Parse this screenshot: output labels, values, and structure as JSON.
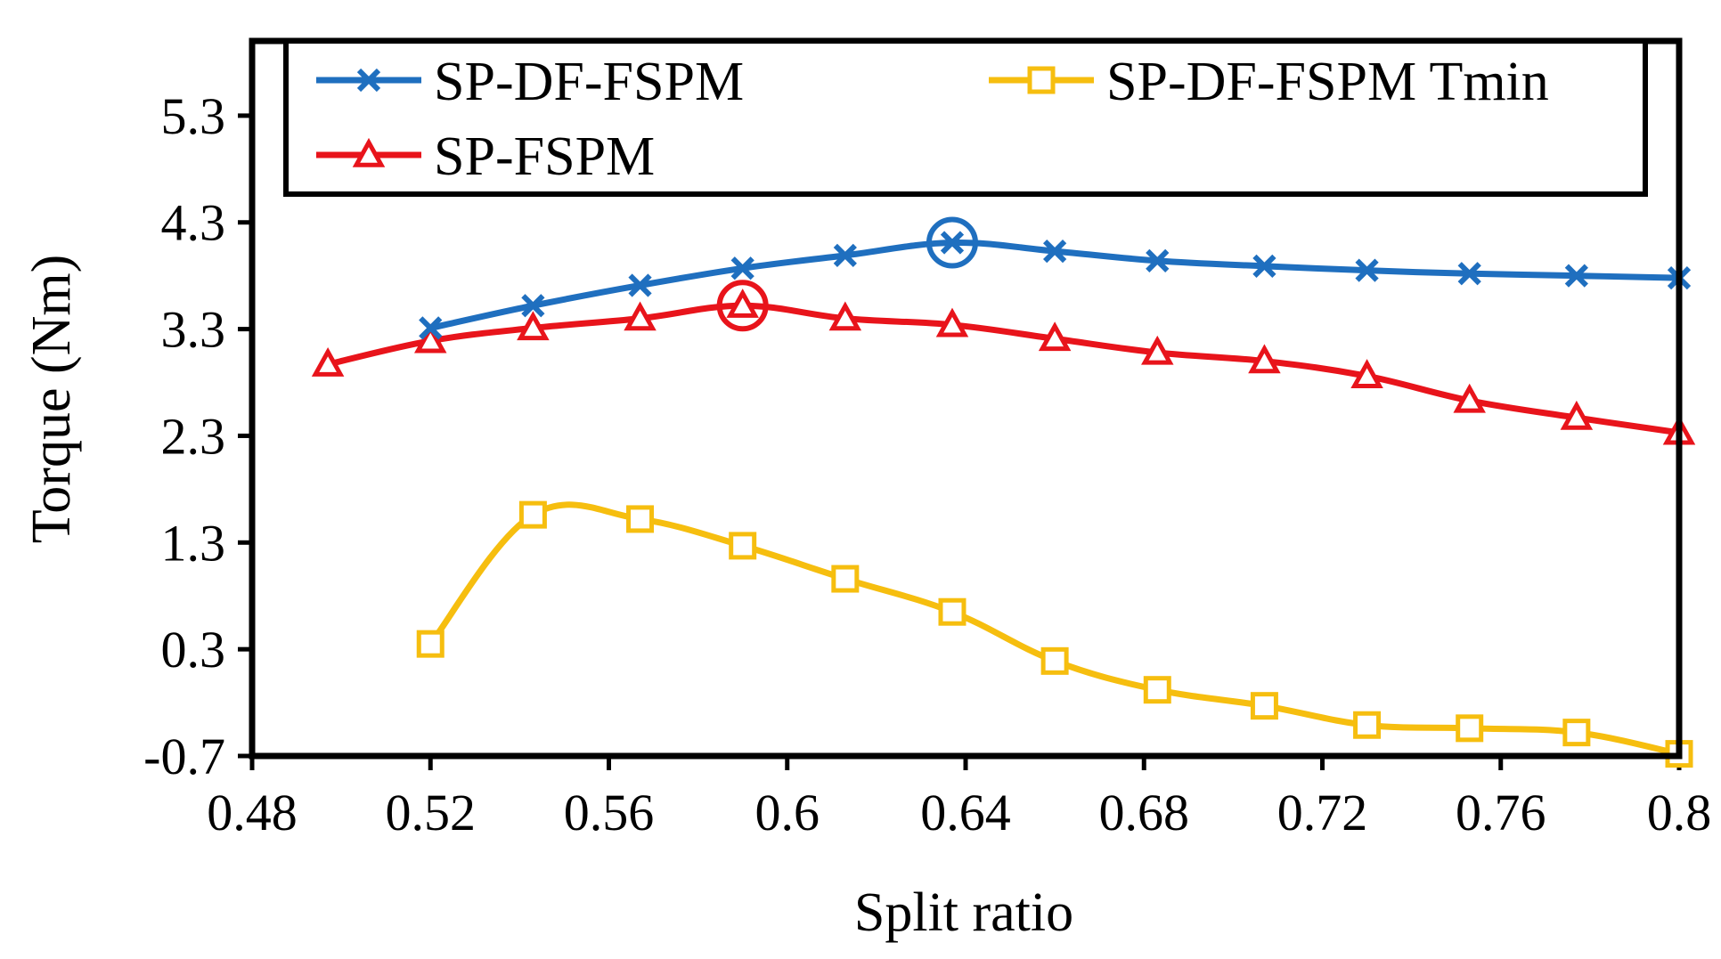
{
  "chart_data": {
    "type": "line",
    "title": "",
    "xlabel": "Split ratio",
    "ylabel": "Torque (Nm)",
    "xlim": [
      0.48,
      0.8
    ],
    "ylim": [
      -0.7,
      6.0
    ],
    "x_ticks": [
      "0.48",
      "0.52",
      "0.56",
      "0.6",
      "0.64",
      "0.68",
      "0.72",
      "0.76",
      "0.8"
    ],
    "y_ticks": [
      "-0.7",
      "0.3",
      "1.3",
      "2.3",
      "3.3",
      "4.3",
      "5.3"
    ],
    "legend_position": "top",
    "series": [
      {
        "name": "SP-DF-FSPM",
        "color": "#1F6FBF",
        "marker": "x",
        "x": [
          0.52,
          0.543,
          0.567,
          0.59,
          0.613,
          0.637,
          0.66,
          0.683,
          0.707,
          0.73,
          0.753,
          0.777,
          0.8
        ],
        "y": [
          3.31,
          3.52,
          3.71,
          3.87,
          3.99,
          4.11,
          4.03,
          3.94,
          3.89,
          3.85,
          3.82,
          3.8,
          3.78
        ],
        "highlight_index": 5
      },
      {
        "name": "SP-FSPM",
        "color": "#E8141B",
        "marker": "triangle",
        "x": [
          0.497,
          0.52,
          0.543,
          0.567,
          0.59,
          0.613,
          0.637,
          0.66,
          0.683,
          0.707,
          0.73,
          0.753,
          0.777,
          0.8
        ],
        "y": [
          2.97,
          3.19,
          3.31,
          3.4,
          3.52,
          3.4,
          3.34,
          3.21,
          3.08,
          3.0,
          2.86,
          2.63,
          2.47,
          2.33
        ],
        "highlight_index": 4
      },
      {
        "name": "SP-DF-FSPM Tmin",
        "color": "#F6BE0F",
        "marker": "square",
        "x": [
          0.52,
          0.543,
          0.567,
          0.59,
          0.613,
          0.637,
          0.66,
          0.683,
          0.707,
          0.73,
          0.753,
          0.777,
          0.8
        ],
        "y": [
          0.35,
          1.56,
          1.52,
          1.27,
          0.96,
          0.65,
          0.19,
          -0.08,
          -0.23,
          -0.41,
          -0.44,
          -0.48,
          -0.68
        ]
      }
    ]
  }
}
